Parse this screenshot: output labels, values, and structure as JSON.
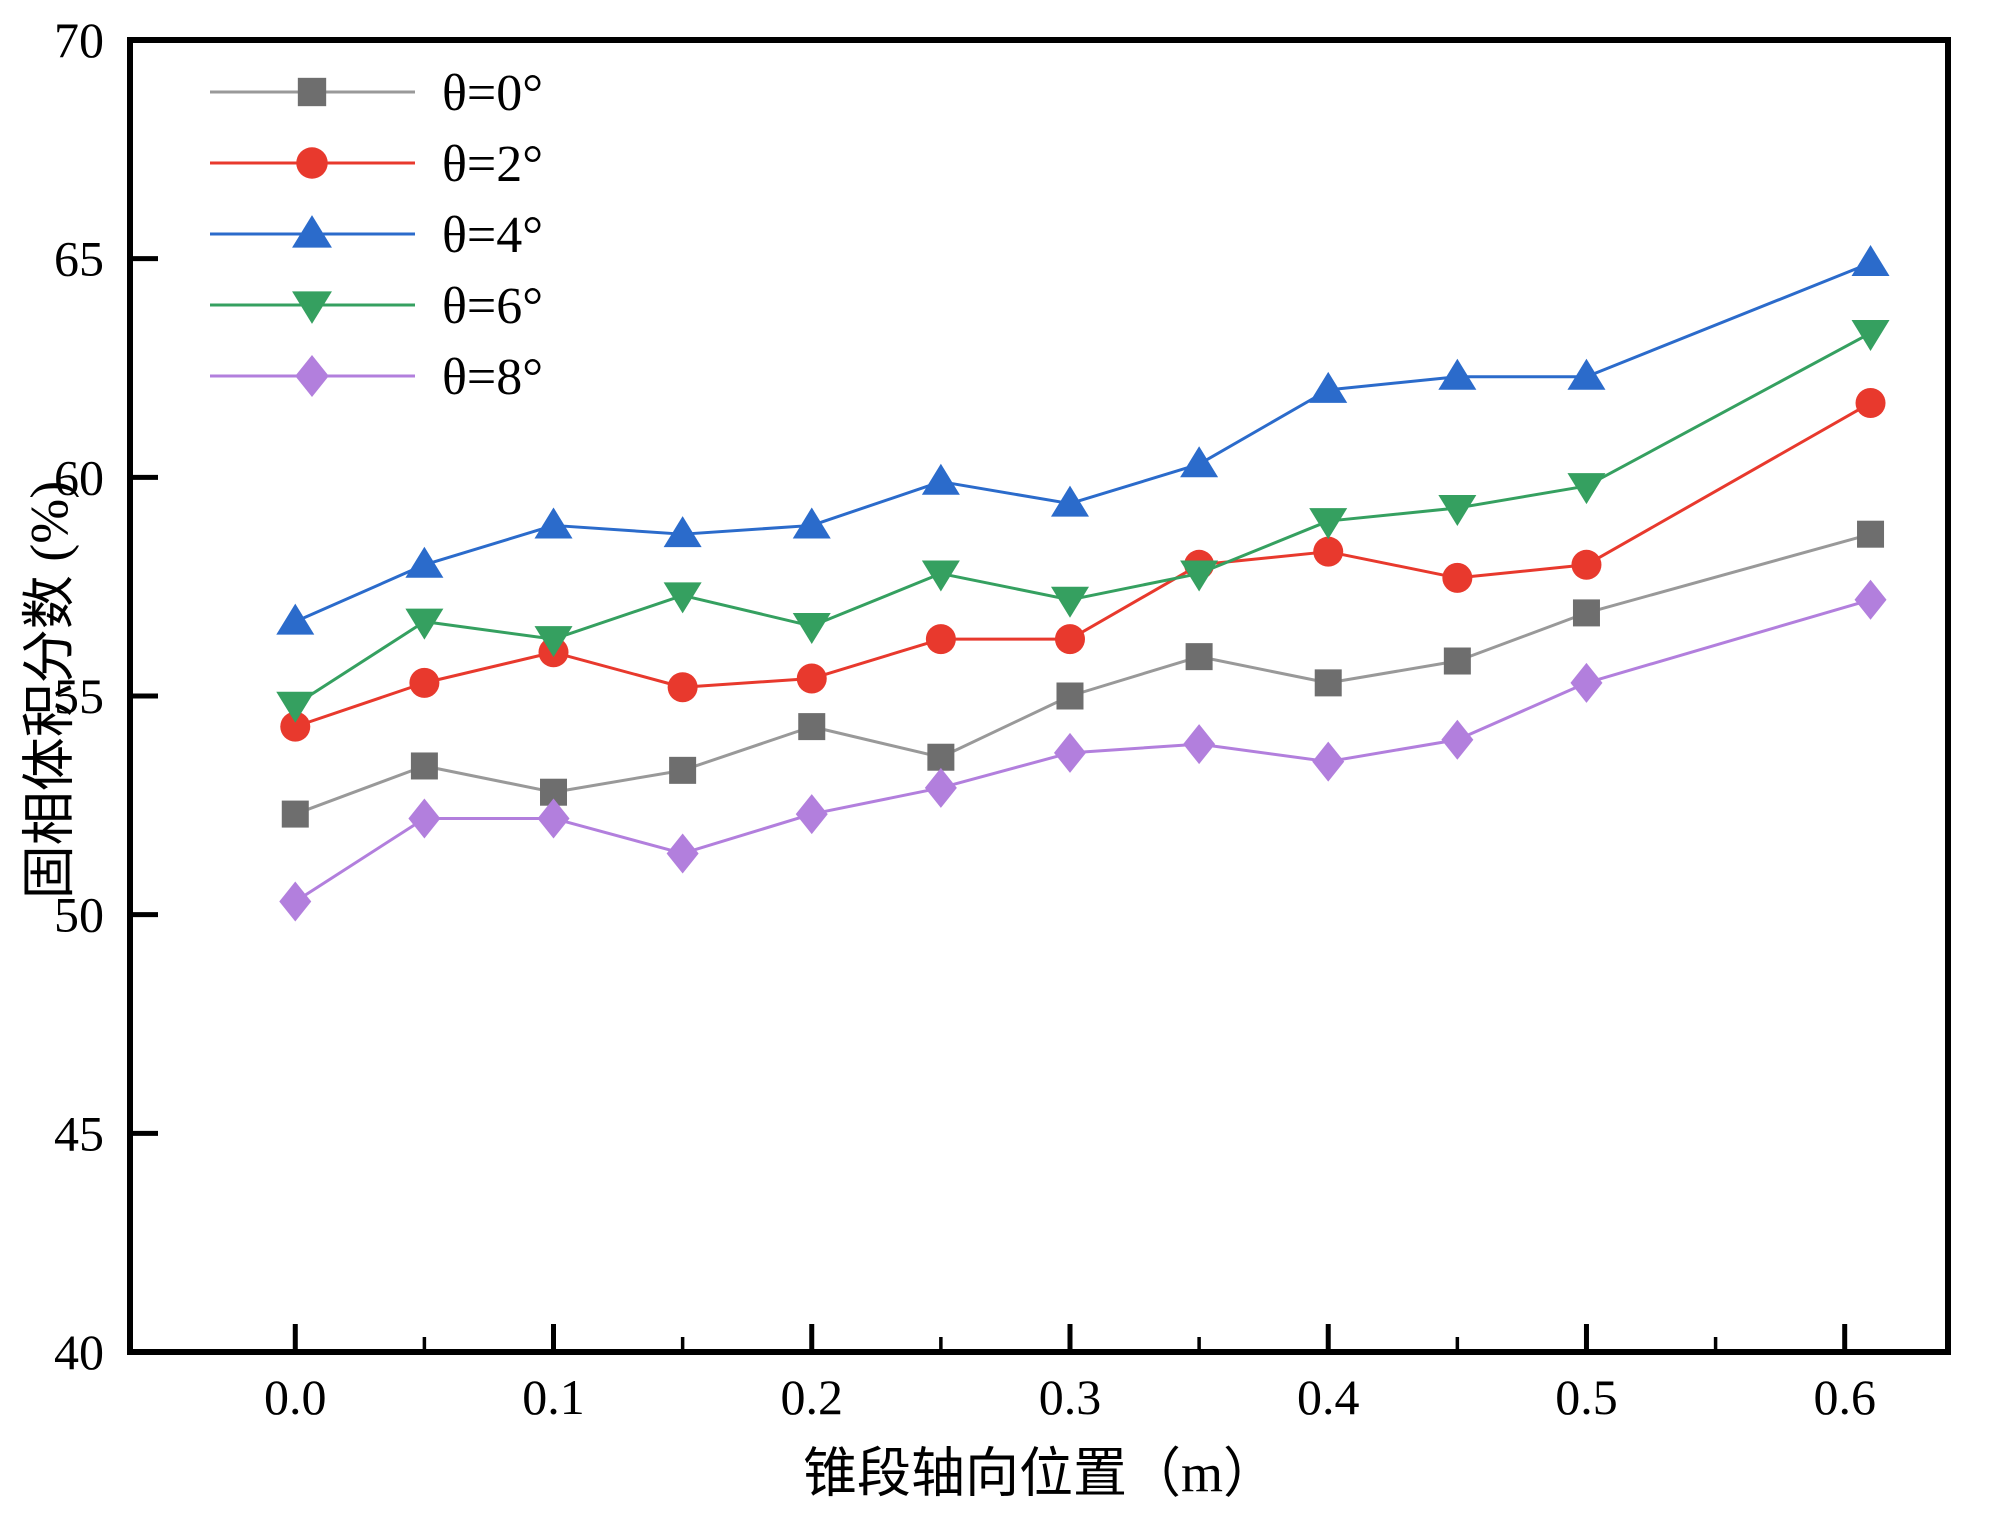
{
  "chart_data": {
    "type": "line",
    "title": "",
    "xlabel": "锥段轴向位置（m）",
    "ylabel": "固相体积分数 (%)",
    "xlim": [
      -0.064,
      0.64
    ],
    "ylim": [
      40,
      70
    ],
    "grid": false,
    "legend_position": "top-left",
    "x_major_ticks": [
      0.0,
      0.1,
      0.2,
      0.3,
      0.4,
      0.5,
      0.6
    ],
    "x_tick_labels": [
      "0.0",
      "0.1",
      "0.2",
      "0.3",
      "0.4",
      "0.5",
      "0.6"
    ],
    "x_minor_ticks": [
      0.05,
      0.15,
      0.25,
      0.35,
      0.45,
      0.55
    ],
    "y_major_ticks": [
      40,
      45,
      50,
      55,
      60,
      65,
      70
    ],
    "y_tick_labels": [
      "40",
      "45",
      "50",
      "55",
      "60",
      "65",
      "70"
    ],
    "x": [
      0.0,
      0.05,
      0.1,
      0.15,
      0.2,
      0.25,
      0.3,
      0.35,
      0.4,
      0.45,
      0.5,
      0.61
    ],
    "series": [
      {
        "name": "θ=0°",
        "marker": "square",
        "marker_color": "#6e6e6e",
        "line_color": "#999999",
        "values": [
          52.3,
          53.4,
          52.8,
          53.3,
          54.3,
          53.6,
          55.0,
          55.9,
          55.3,
          55.8,
          56.9,
          58.7
        ]
      },
      {
        "name": "θ=2°",
        "marker": "circle",
        "marker_color": "#e8392d",
        "line_color": "#e8392d",
        "values": [
          54.3,
          55.3,
          56.0,
          55.2,
          55.4,
          56.3,
          56.3,
          58.0,
          58.3,
          57.7,
          58.0,
          61.7
        ]
      },
      {
        "name": "θ=4°",
        "marker": "triangle-up",
        "marker_color": "#2b6bcb",
        "line_color": "#2b6bcb",
        "values": [
          56.7,
          58.0,
          58.9,
          58.7,
          58.9,
          59.9,
          59.4,
          60.3,
          62.0,
          62.3,
          62.3,
          64.9
        ]
      },
      {
        "name": "θ=6°",
        "marker": "triangle-down",
        "marker_color": "#35a060",
        "line_color": "#35a060",
        "values": [
          54.8,
          56.7,
          56.3,
          57.3,
          56.6,
          57.8,
          57.2,
          57.8,
          59.0,
          59.3,
          59.8,
          63.3
        ]
      },
      {
        "name": "θ=8°",
        "marker": "diamond",
        "marker_color": "#b27fdd",
        "line_color": "#b27fdd",
        "values": [
          50.3,
          52.2,
          52.2,
          51.4,
          52.3,
          52.9,
          53.7,
          53.9,
          53.5,
          54.0,
          55.3,
          57.2
        ]
      }
    ],
    "frame_color": "#000000",
    "background_color": "#ffffff"
  }
}
